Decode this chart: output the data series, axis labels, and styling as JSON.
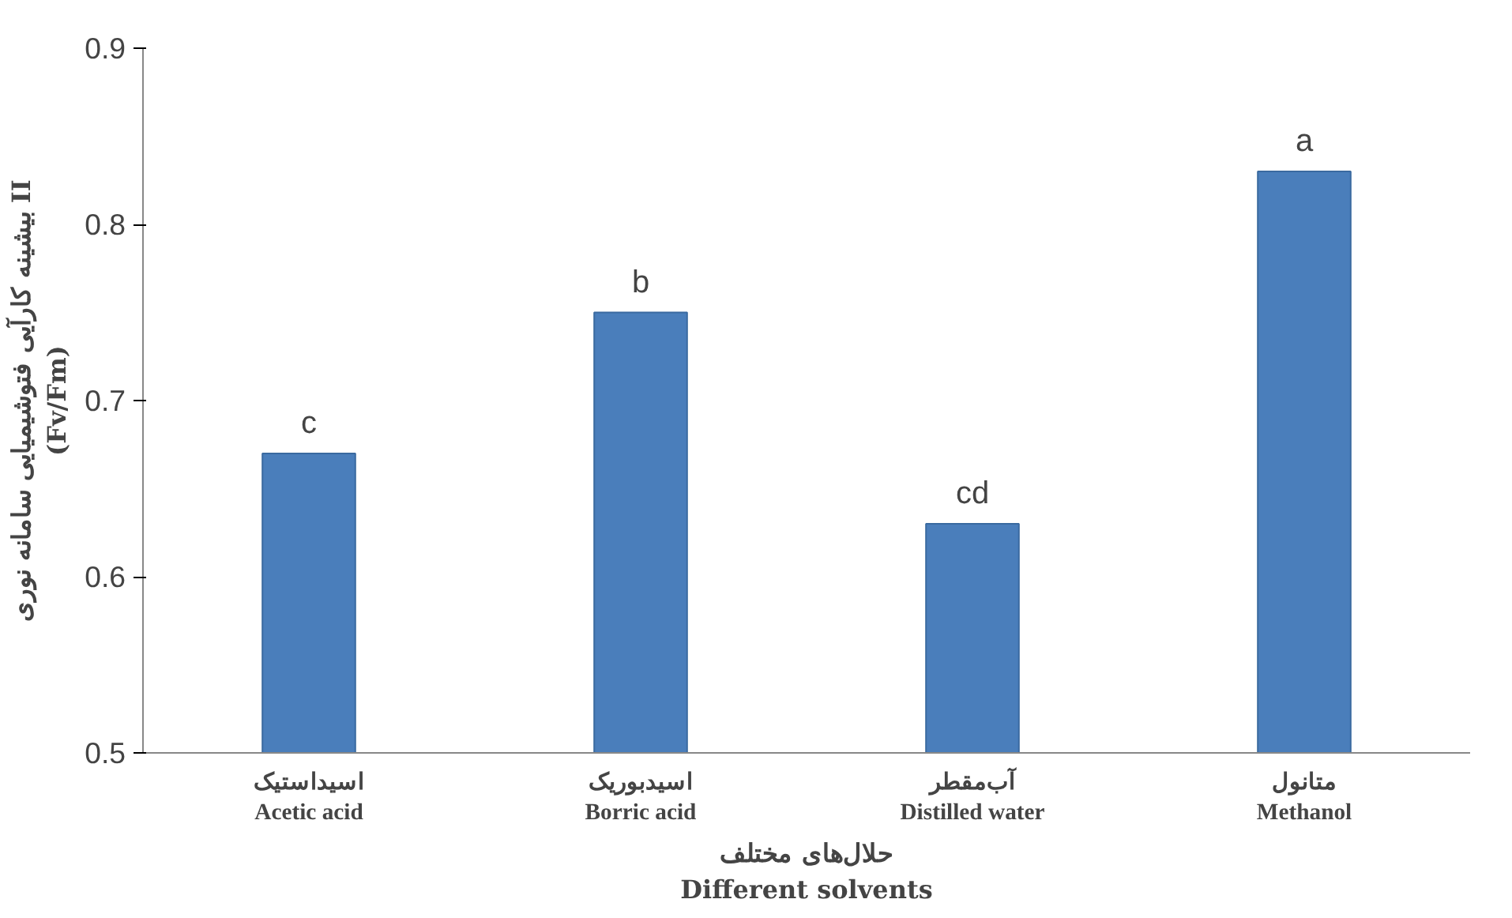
{
  "chart_data": {
    "type": "bar",
    "categories": [
      "اسیداستیک\nAcetic acid",
      "اسیدبوریک\nBorric acid",
      "آب‌مقطر\nDistilled water",
      "متانول\nMethanol"
    ],
    "values": [
      0.67,
      0.75,
      0.63,
      0.83
    ],
    "value_labels": [
      "c",
      "b",
      "cd",
      "a"
    ],
    "color": "#4a7ebb",
    "xlabel": "حلال‌های مختلف\nDifferent solvents",
    "ylabel": "بیشینه کارآیی فتوشیمیایی سامانه نوری II\n(Fv/Fm)",
    "ylim": [
      0.5,
      0.9
    ],
    "yticks": [
      0.5,
      0.6,
      0.7,
      0.8,
      0.9
    ],
    "grid": false
  }
}
